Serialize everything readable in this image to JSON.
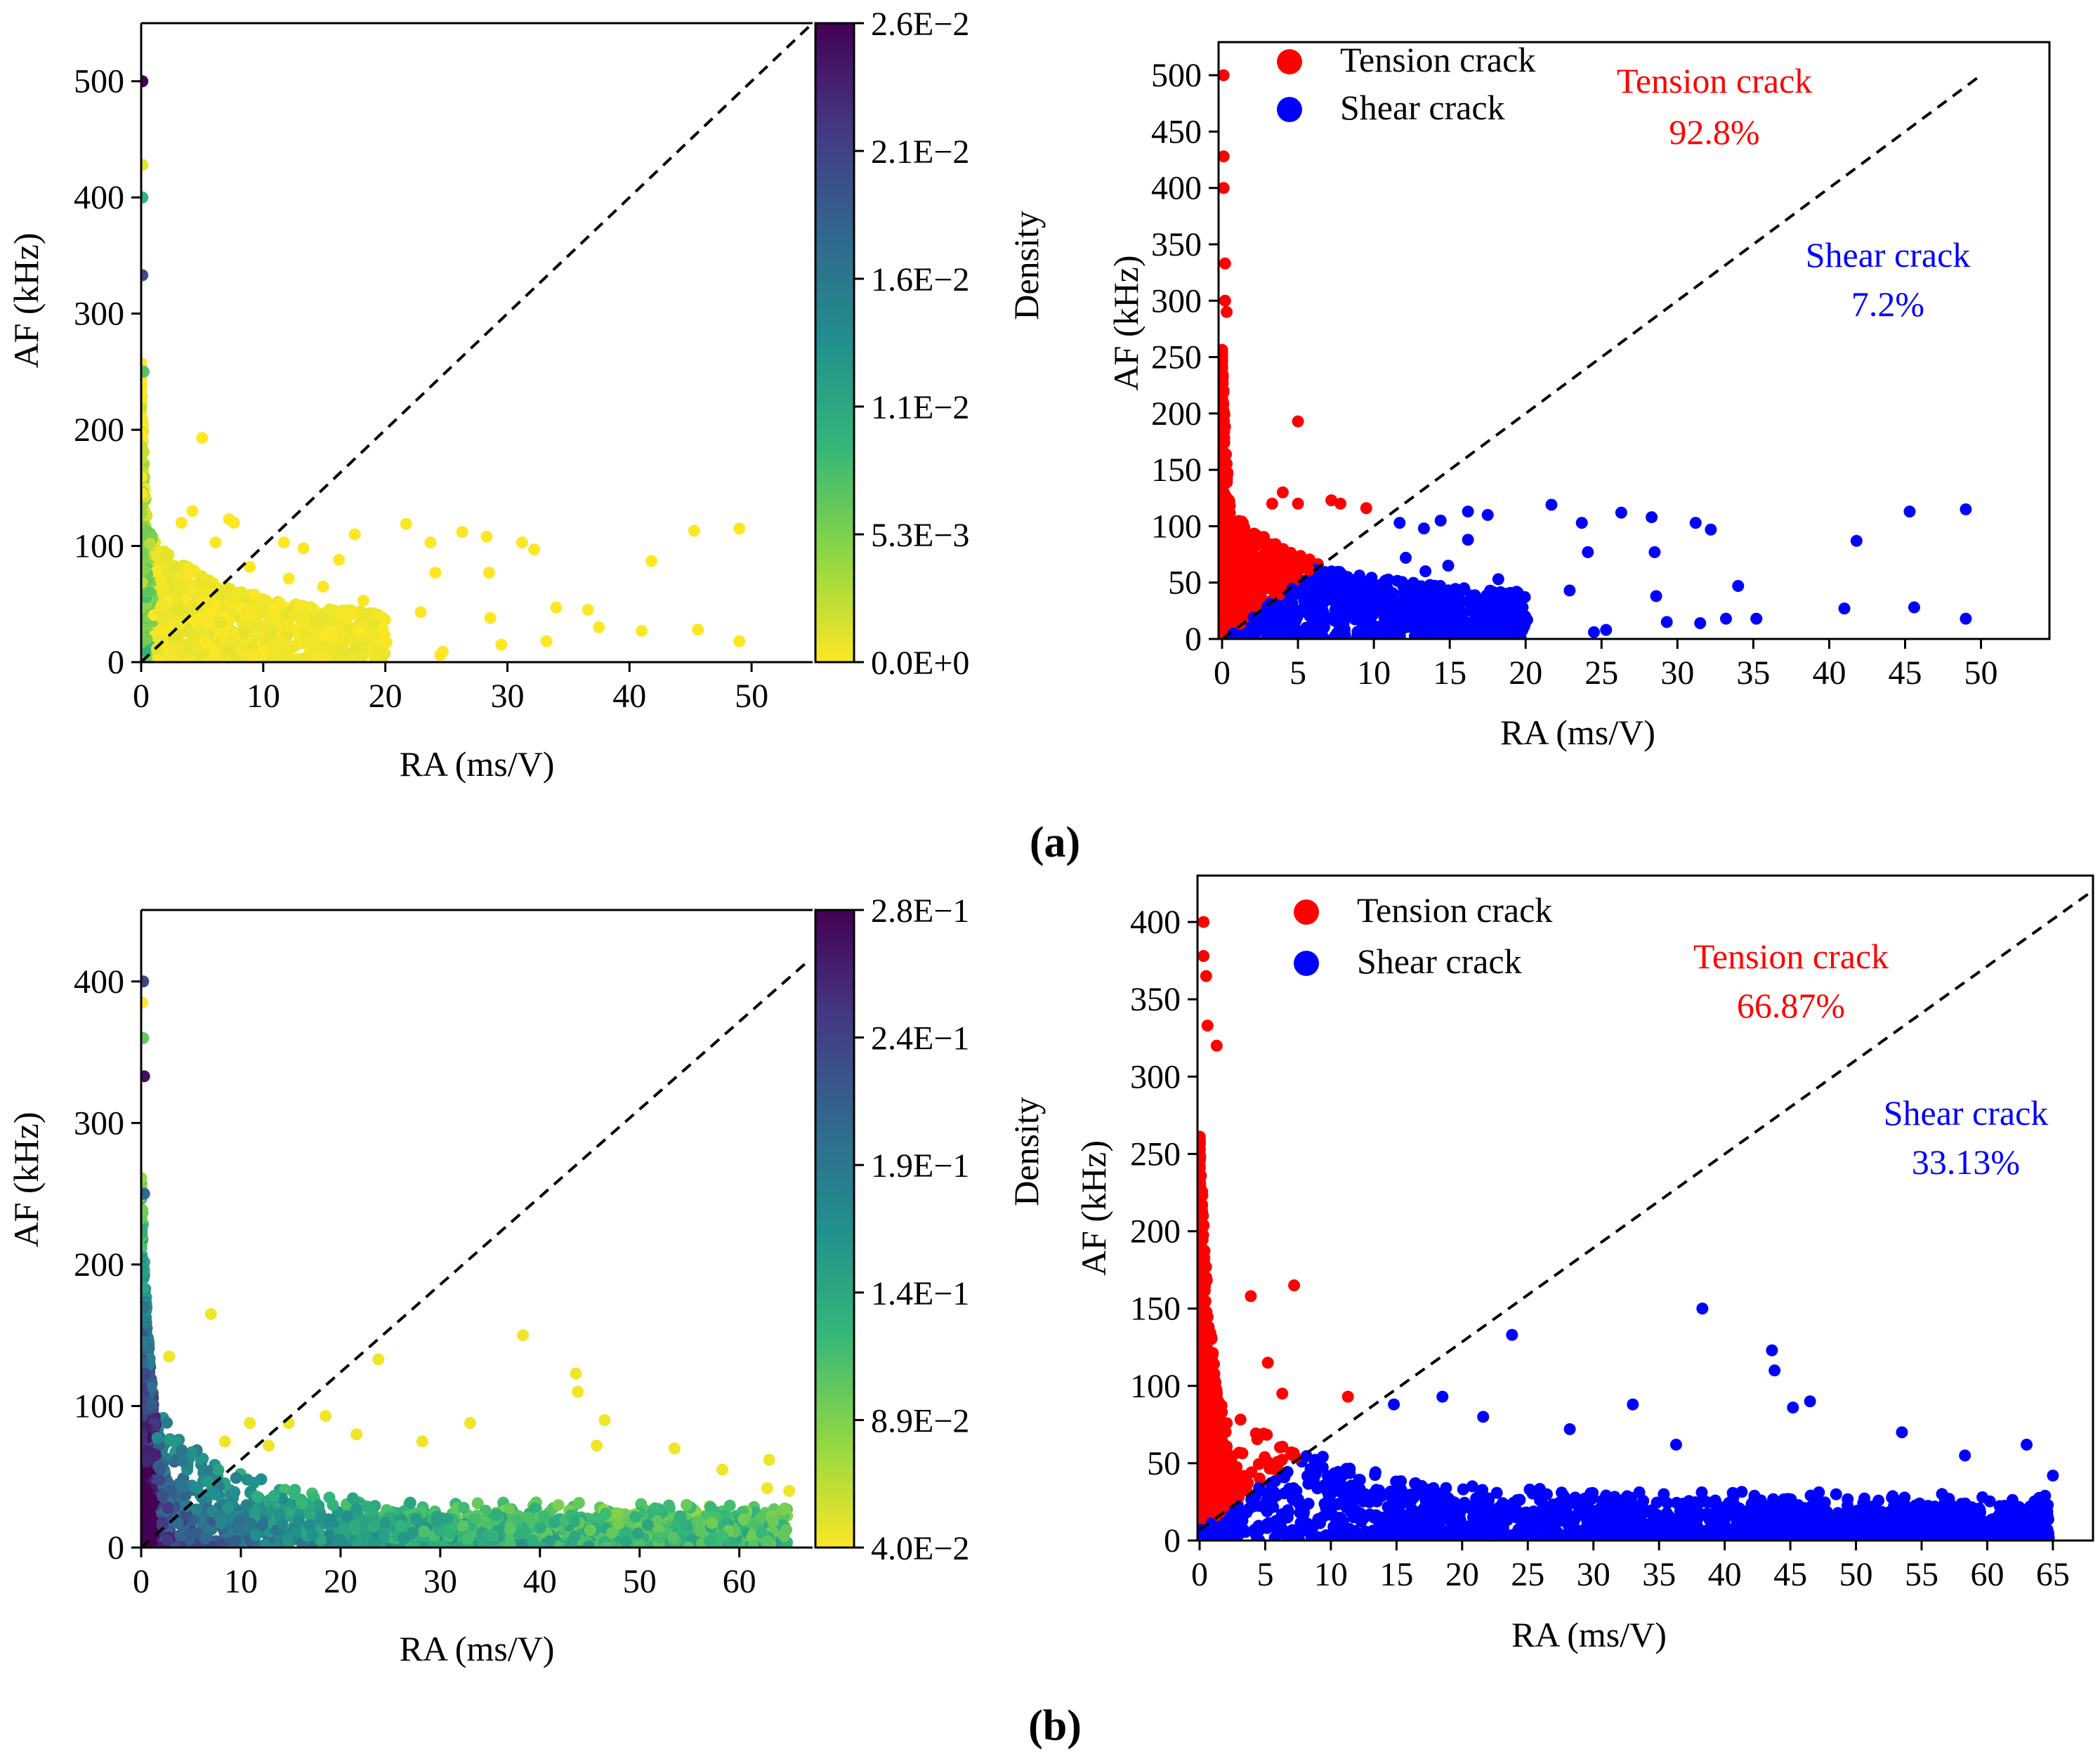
{
  "panel_labels": [
    "(a)",
    "(b)"
  ],
  "colors": {
    "tension": "#ff0000",
    "shear": "#0000ff",
    "line": "#000000"
  },
  "colormap": [
    "#fde725",
    "#90d743",
    "#35b779",
    "#21908d",
    "#31688e",
    "#443983",
    "#440154"
  ],
  "chart_data": [
    {
      "id": "a-density",
      "type": "scatter",
      "xlabel": "RA (ms/V)",
      "ylabel": "AF (kHz)",
      "xlim": [
        0,
        55
      ],
      "ylim": [
        0,
        550
      ],
      "xticks": [
        0,
        10,
        20,
        30,
        40,
        50
      ],
      "yticks": [
        0,
        100,
        200,
        300,
        400,
        500
      ],
      "diagonal": {
        "from": [
          0,
          0
        ],
        "to": [
          55,
          550
        ],
        "style": "dashed"
      },
      "colorbar": {
        "label": "Density",
        "min": 0,
        "max": 0.026,
        "tick_labels": [
          "0.0E+0",
          "5.3E−3",
          "1.1E−2",
          "1.6E−2",
          "2.1E−2",
          "2.6E−2"
        ]
      },
      "highlighted_points": [
        {
          "x": 0.1,
          "y": 500,
          "density": 0.026
        },
        {
          "x": 0.1,
          "y": 400,
          "density": 0.009
        },
        {
          "x": 0.1,
          "y": 333,
          "density": 0.02
        },
        {
          "x": 0.2,
          "y": 250,
          "density": 0.007
        },
        {
          "x": 0.1,
          "y": 428,
          "density": 0.001
        }
      ],
      "outliers": [
        [
          5,
          193
        ],
        [
          45.3,
          113
        ],
        [
          49,
          115
        ],
        [
          41.8,
          87
        ],
        [
          41,
          27
        ],
        [
          45.6,
          28
        ],
        [
          49,
          18
        ],
        [
          31.2,
          103
        ],
        [
          32.2,
          97
        ],
        [
          28.3,
          108
        ],
        [
          28.5,
          77
        ],
        [
          28.6,
          38
        ],
        [
          34,
          47
        ],
        [
          33.2,
          18
        ],
        [
          26.3,
          112
        ],
        [
          23.7,
          103
        ],
        [
          24.1,
          77
        ],
        [
          22.9,
          43
        ],
        [
          21.7,
          119
        ],
        [
          18.2,
          53
        ],
        [
          19.8,
          28
        ],
        [
          20.1,
          17
        ],
        [
          17.5,
          110
        ],
        [
          16.2,
          88
        ],
        [
          14.9,
          65
        ],
        [
          15.2,
          25
        ],
        [
          13.3,
          98
        ],
        [
          12.1,
          72
        ],
        [
          11.7,
          103
        ],
        [
          10.8,
          45
        ],
        [
          8.9,
          82
        ],
        [
          9.3,
          58
        ],
        [
          7.2,
          123
        ],
        [
          7.6,
          120
        ],
        [
          4.2,
          130
        ],
        [
          3.3,
          120
        ],
        [
          6.1,
          103
        ],
        [
          24.5,
          6
        ],
        [
          24.7,
          9
        ],
        [
          36.6,
          45
        ],
        [
          37.5,
          30
        ],
        [
          29.5,
          15
        ]
      ]
    },
    {
      "id": "a-classified",
      "type": "scatter",
      "xlabel": "RA (ms/V)",
      "ylabel": "AF (kHz)",
      "xlim": [
        0,
        54
      ],
      "ylim": [
        0,
        520
      ],
      "xticks": [
        0,
        5,
        10,
        15,
        20,
        25,
        30,
        35,
        40,
        45,
        50
      ],
      "yticks": [
        0,
        50,
        100,
        150,
        200,
        250,
        300,
        350,
        400,
        450,
        500
      ],
      "diagonal": {
        "from": [
          0,
          0
        ],
        "to": [
          50,
          500
        ],
        "style": "dashed"
      },
      "legend": [
        "Tension crack",
        "Shear crack"
      ],
      "annotations": [
        {
          "label": "Tension crack",
          "value": "92.8%",
          "color": "#ff0000"
        },
        {
          "label": "Shear crack",
          "value": "7.2%",
          "color": "#0000ff"
        }
      ],
      "series": [
        {
          "name": "Tension crack",
          "outliers": [
            [
              0.1,
              500
            ],
            [
              0.1,
              428
            ],
            [
              0.1,
              400
            ],
            [
              0.2,
              333
            ],
            [
              0.2,
              300
            ],
            [
              0.3,
              290
            ],
            [
              5,
              193
            ],
            [
              4,
              130
            ],
            [
              5,
              120
            ],
            [
              7.2,
              123
            ],
            [
              7.8,
              120
            ],
            [
              9.5,
              116
            ],
            [
              3.3,
              120
            ]
          ]
        },
        {
          "name": "Shear crack",
          "outliers": [
            [
              45.3,
              113
            ],
            [
              49,
              115
            ],
            [
              41.8,
              87
            ],
            [
              41,
              27
            ],
            [
              45.6,
              28
            ],
            [
              49,
              18
            ],
            [
              31.2,
              103
            ],
            [
              32.2,
              97
            ],
            [
              28.3,
              108
            ],
            [
              28.5,
              77
            ],
            [
              28.6,
              38
            ],
            [
              34,
              47
            ],
            [
              33.2,
              18
            ],
            [
              26.3,
              112
            ],
            [
              23.7,
              103
            ],
            [
              24.1,
              77
            ],
            [
              22.9,
              43
            ],
            [
              21.7,
              119
            ],
            [
              18.2,
              53
            ],
            [
              19.8,
              28
            ],
            [
              20.1,
              17
            ],
            [
              17.5,
              110
            ],
            [
              16.2,
              88
            ],
            [
              14.9,
              65
            ],
            [
              15.2,
              25
            ],
            [
              13.3,
              98
            ],
            [
              12.1,
              72
            ],
            [
              11.7,
              103
            ],
            [
              10.8,
              45
            ],
            [
              31.5,
              14
            ],
            [
              35.2,
              18
            ],
            [
              24.5,
              6
            ],
            [
              25.3,
              8
            ],
            [
              29.3,
              15
            ],
            [
              14.4,
              105
            ],
            [
              16.2,
              113
            ],
            [
              13.4,
              60
            ]
          ]
        }
      ]
    },
    {
      "id": "b-density",
      "type": "scatter",
      "xlabel": "RA (ms/V)",
      "ylabel": "AF (kHz)",
      "xlim": [
        0,
        67
      ],
      "ylim": [
        0,
        450
      ],
      "xticks": [
        0,
        10,
        20,
        30,
        40,
        50,
        60
      ],
      "yticks": [
        0,
        100,
        200,
        300,
        400
      ],
      "diagonal": {
        "from": [
          0,
          0
        ],
        "to": [
          67,
          415
        ],
        "style": "dashed"
      },
      "colorbar": {
        "label": "Density",
        "min": 0.04,
        "max": 0.28,
        "tick_labels": [
          "4.0E−2",
          "8.9E−2",
          "1.4E−1",
          "1.9E−1",
          "2.4E−1",
          "2.8E−1"
        ]
      },
      "highlighted_points": [
        {
          "x": 0.2,
          "y": 400,
          "density": 0.23
        },
        {
          "x": 0.1,
          "y": 385,
          "density": 0.04
        },
        {
          "x": 0.3,
          "y": 333,
          "density": 0.27
        },
        {
          "x": 0.2,
          "y": 360,
          "density": 0.1
        },
        {
          "x": 0.3,
          "y": 250,
          "density": 0.2
        }
      ],
      "outliers": [
        [
          7,
          165
        ],
        [
          2.8,
          135
        ],
        [
          23.8,
          133
        ],
        [
          38.3,
          150
        ],
        [
          43.6,
          123
        ],
        [
          43.8,
          110
        ],
        [
          46.5,
          90
        ],
        [
          33,
          88
        ],
        [
          18.5,
          93
        ],
        [
          53.5,
          70
        ],
        [
          63,
          62
        ],
        [
          14.8,
          88
        ],
        [
          21.6,
          80
        ],
        [
          58.3,
          55
        ],
        [
          62.8,
          42
        ],
        [
          65,
          40
        ],
        [
          10.9,
          88
        ],
        [
          8.4,
          75
        ],
        [
          12.8,
          72
        ],
        [
          28.2,
          75
        ],
        [
          45.7,
          72
        ]
      ]
    },
    {
      "id": "b-classified",
      "type": "scatter",
      "xlabel": "RA (ms/V)",
      "ylabel": "AF (kHz)",
      "xlim": [
        0,
        68
      ],
      "ylim": [
        0,
        430
      ],
      "xticks": [
        0,
        5,
        10,
        15,
        20,
        25,
        30,
        35,
        40,
        45,
        50,
        55,
        60,
        65
      ],
      "yticks": [
        0,
        50,
        100,
        150,
        200,
        250,
        300,
        350,
        400
      ],
      "diagonal": {
        "from": [
          0,
          7
        ],
        "to": [
          68,
          420
        ],
        "style": "dashed"
      },
      "legend": [
        "Tension crack",
        "Shear crack"
      ],
      "annotations": [
        {
          "label": "Tension crack",
          "value": "66.87%",
          "color": "#ff0000"
        },
        {
          "label": "Shear crack",
          "value": "33.13%",
          "color": "#0000ff"
        }
      ],
      "series": [
        {
          "name": "Tension crack",
          "outliers": [
            [
              0.3,
              400
            ],
            [
              0.3,
              378
            ],
            [
              0.5,
              365
            ],
            [
              0.6,
              333
            ],
            [
              1.3,
              320
            ],
            [
              3.9,
              158
            ],
            [
              7.2,
              165
            ],
            [
              5.2,
              115
            ],
            [
              6.3,
              95
            ],
            [
              11.3,
              93
            ]
          ]
        },
        {
          "name": "Shear crack",
          "outliers": [
            [
              38.3,
              150
            ],
            [
              23.8,
              133
            ],
            [
              43.6,
              123
            ],
            [
              43.8,
              110
            ],
            [
              46.5,
              90
            ],
            [
              45.2,
              86
            ],
            [
              33,
              88
            ],
            [
              18.5,
              93
            ],
            [
              53.5,
              70
            ],
            [
              63,
              62
            ],
            [
              14.8,
              88
            ],
            [
              21.6,
              80
            ],
            [
              58.3,
              55
            ],
            [
              65,
              42
            ],
            [
              28.2,
              72
            ],
            [
              36.3,
              62
            ]
          ]
        }
      ]
    }
  ]
}
